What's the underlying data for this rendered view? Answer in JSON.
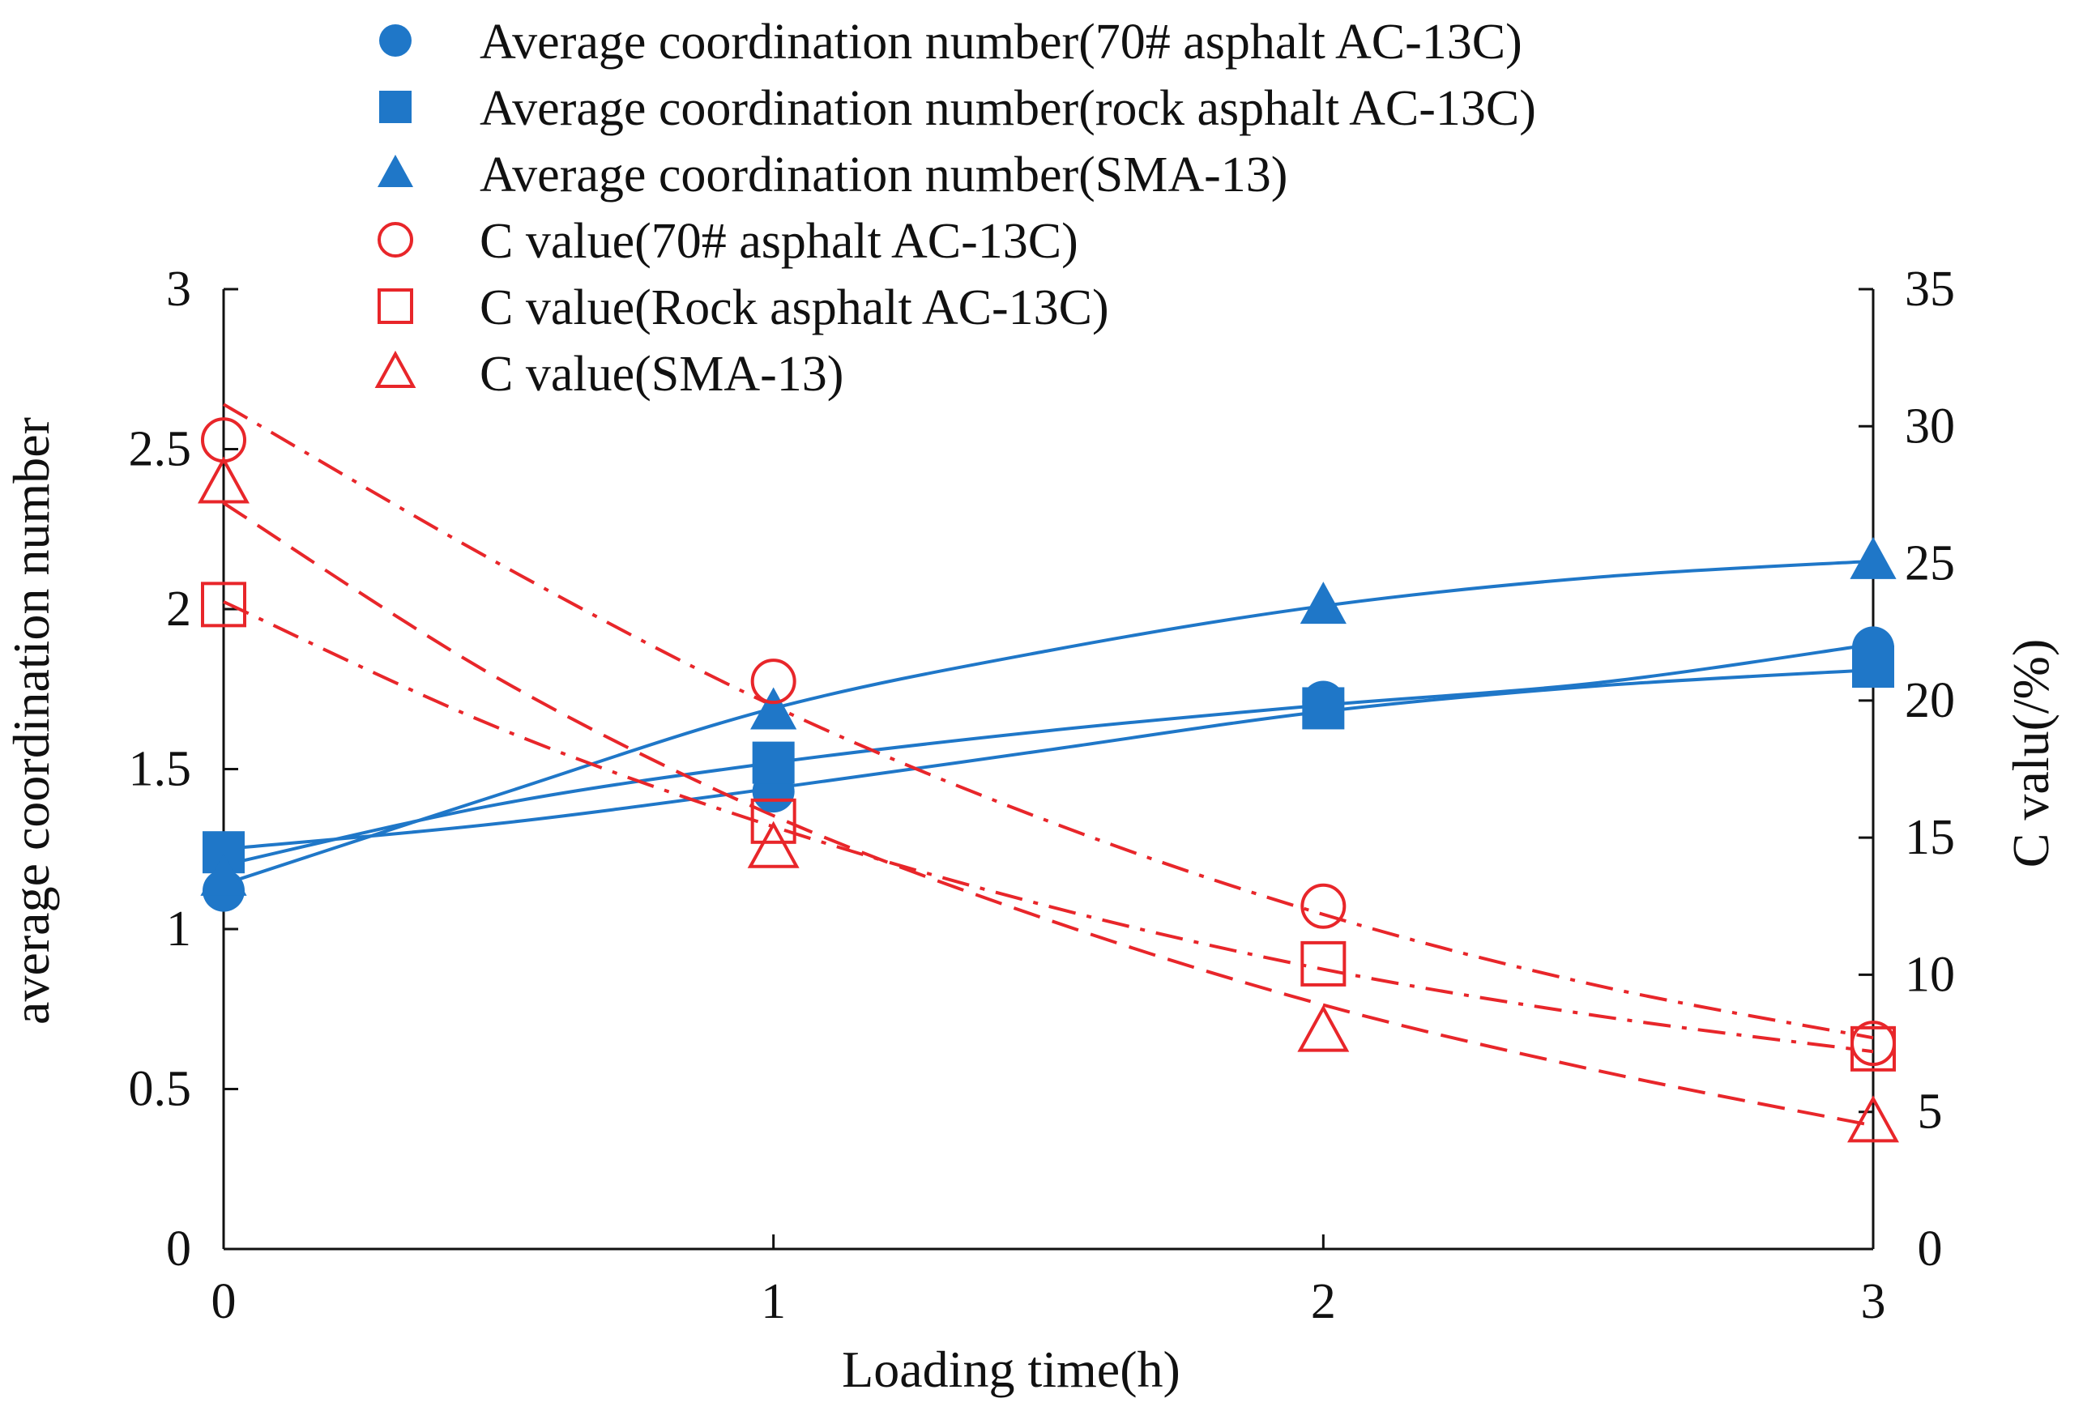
{
  "chart_data": {
    "type": "line",
    "title": "",
    "xlabel": "Loading time(h)",
    "ylabel_left": "average  coordination number",
    "ylabel_right": "C valu(/%)",
    "x_ticks": [
      "0",
      "1",
      "2",
      "3"
    ],
    "y_left_ticks": [
      "0",
      "0.5",
      "1",
      "1.5",
      "2",
      "2.5",
      "3"
    ],
    "y_right_ticks": [
      "0",
      "5",
      "10",
      "15",
      "20",
      "25",
      "30",
      "35"
    ],
    "xlim": [
      0,
      3
    ],
    "ylim_left": [
      0,
      3
    ],
    "ylim_right": [
      0,
      35
    ],
    "legend_position": "top-center",
    "colors": {
      "blue": "#1f77c8",
      "red": "#e8262a",
      "axis": "#111111"
    },
    "series": [
      {
        "name": "Average coordination number(70# asphalt AC-13C)",
        "axis": "left",
        "marker": "circle-filled",
        "color": "#1f77c8",
        "x": [
          0,
          1,
          2,
          3
        ],
        "values": [
          1.12,
          1.43,
          1.71,
          1.88
        ],
        "fit": {
          "style": "solid",
          "x": [
            0,
            0.5,
            1,
            1.5,
            2,
            2.5,
            3
          ],
          "values": [
            1.2,
            1.39,
            1.52,
            1.62,
            1.7,
            1.77,
            1.89
          ]
        }
      },
      {
        "name": "Average coordination number(rock asphalt AC-13C)",
        "axis": "left",
        "marker": "square-filled",
        "color": "#1f77c8",
        "x": [
          0,
          1,
          2,
          3
        ],
        "values": [
          1.24,
          1.52,
          1.69,
          1.82
        ],
        "fit": {
          "style": "solid",
          "x": [
            0,
            0.5,
            1,
            1.5,
            2,
            2.5,
            3
          ],
          "values": [
            1.25,
            1.33,
            1.44,
            1.56,
            1.68,
            1.76,
            1.81
          ]
        }
      },
      {
        "name": "Average coordination number(SMA-13)",
        "axis": "left",
        "marker": "triangle-filled",
        "color": "#1f77c8",
        "x": [
          0,
          1,
          2,
          3
        ],
        "values": [
          1.16,
          1.68,
          2.01,
          2.15
        ],
        "fit": {
          "style": "solid",
          "x": [
            0,
            0.5,
            1,
            1.5,
            2,
            2.5,
            3
          ],
          "values": [
            1.14,
            1.42,
            1.69,
            1.87,
            2.01,
            2.1,
            2.15
          ]
        }
      },
      {
        "name": "C value(70# asphalt AC-13C)",
        "axis": "right",
        "marker": "circle-open",
        "color": "#e8262a",
        "x": [
          0,
          1,
          2,
          3
        ],
        "values": [
          29.5,
          20.7,
          12.5,
          7.5
        ],
        "fit": {
          "style": "dashdot",
          "x": [
            0,
            0.5,
            1,
            1.5,
            2,
            2.5,
            3
          ],
          "values": [
            30.8,
            25.0,
            19.8,
            15.6,
            12.2,
            9.6,
            7.7
          ]
        }
      },
      {
        "name": "C value(Rock asphalt AC-13C)",
        "axis": "right",
        "marker": "square-open",
        "color": "#e8262a",
        "x": [
          0,
          1,
          2,
          3
        ],
        "values": [
          23.5,
          15.6,
          10.4,
          7.3
        ],
        "fit": {
          "style": "dashdot",
          "x": [
            0,
            0.5,
            1,
            1.5,
            2,
            2.5,
            3
          ],
          "values": [
            23.6,
            19.0,
            15.4,
            12.5,
            10.2,
            8.5,
            7.2
          ]
        }
      },
      {
        "name": "C value(SMA-13)",
        "axis": "right",
        "marker": "triangle-open",
        "color": "#e8262a",
        "x": [
          0,
          1,
          2,
          3
        ],
        "values": [
          27.9,
          14.6,
          7.9,
          4.6
        ],
        "fit": {
          "style": "dashed",
          "x": [
            0,
            0.5,
            1,
            1.5,
            2,
            2.5,
            3
          ],
          "values": [
            27.2,
            20.8,
            15.8,
            12.0,
            8.9,
            6.5,
            4.5
          ]
        }
      }
    ]
  }
}
